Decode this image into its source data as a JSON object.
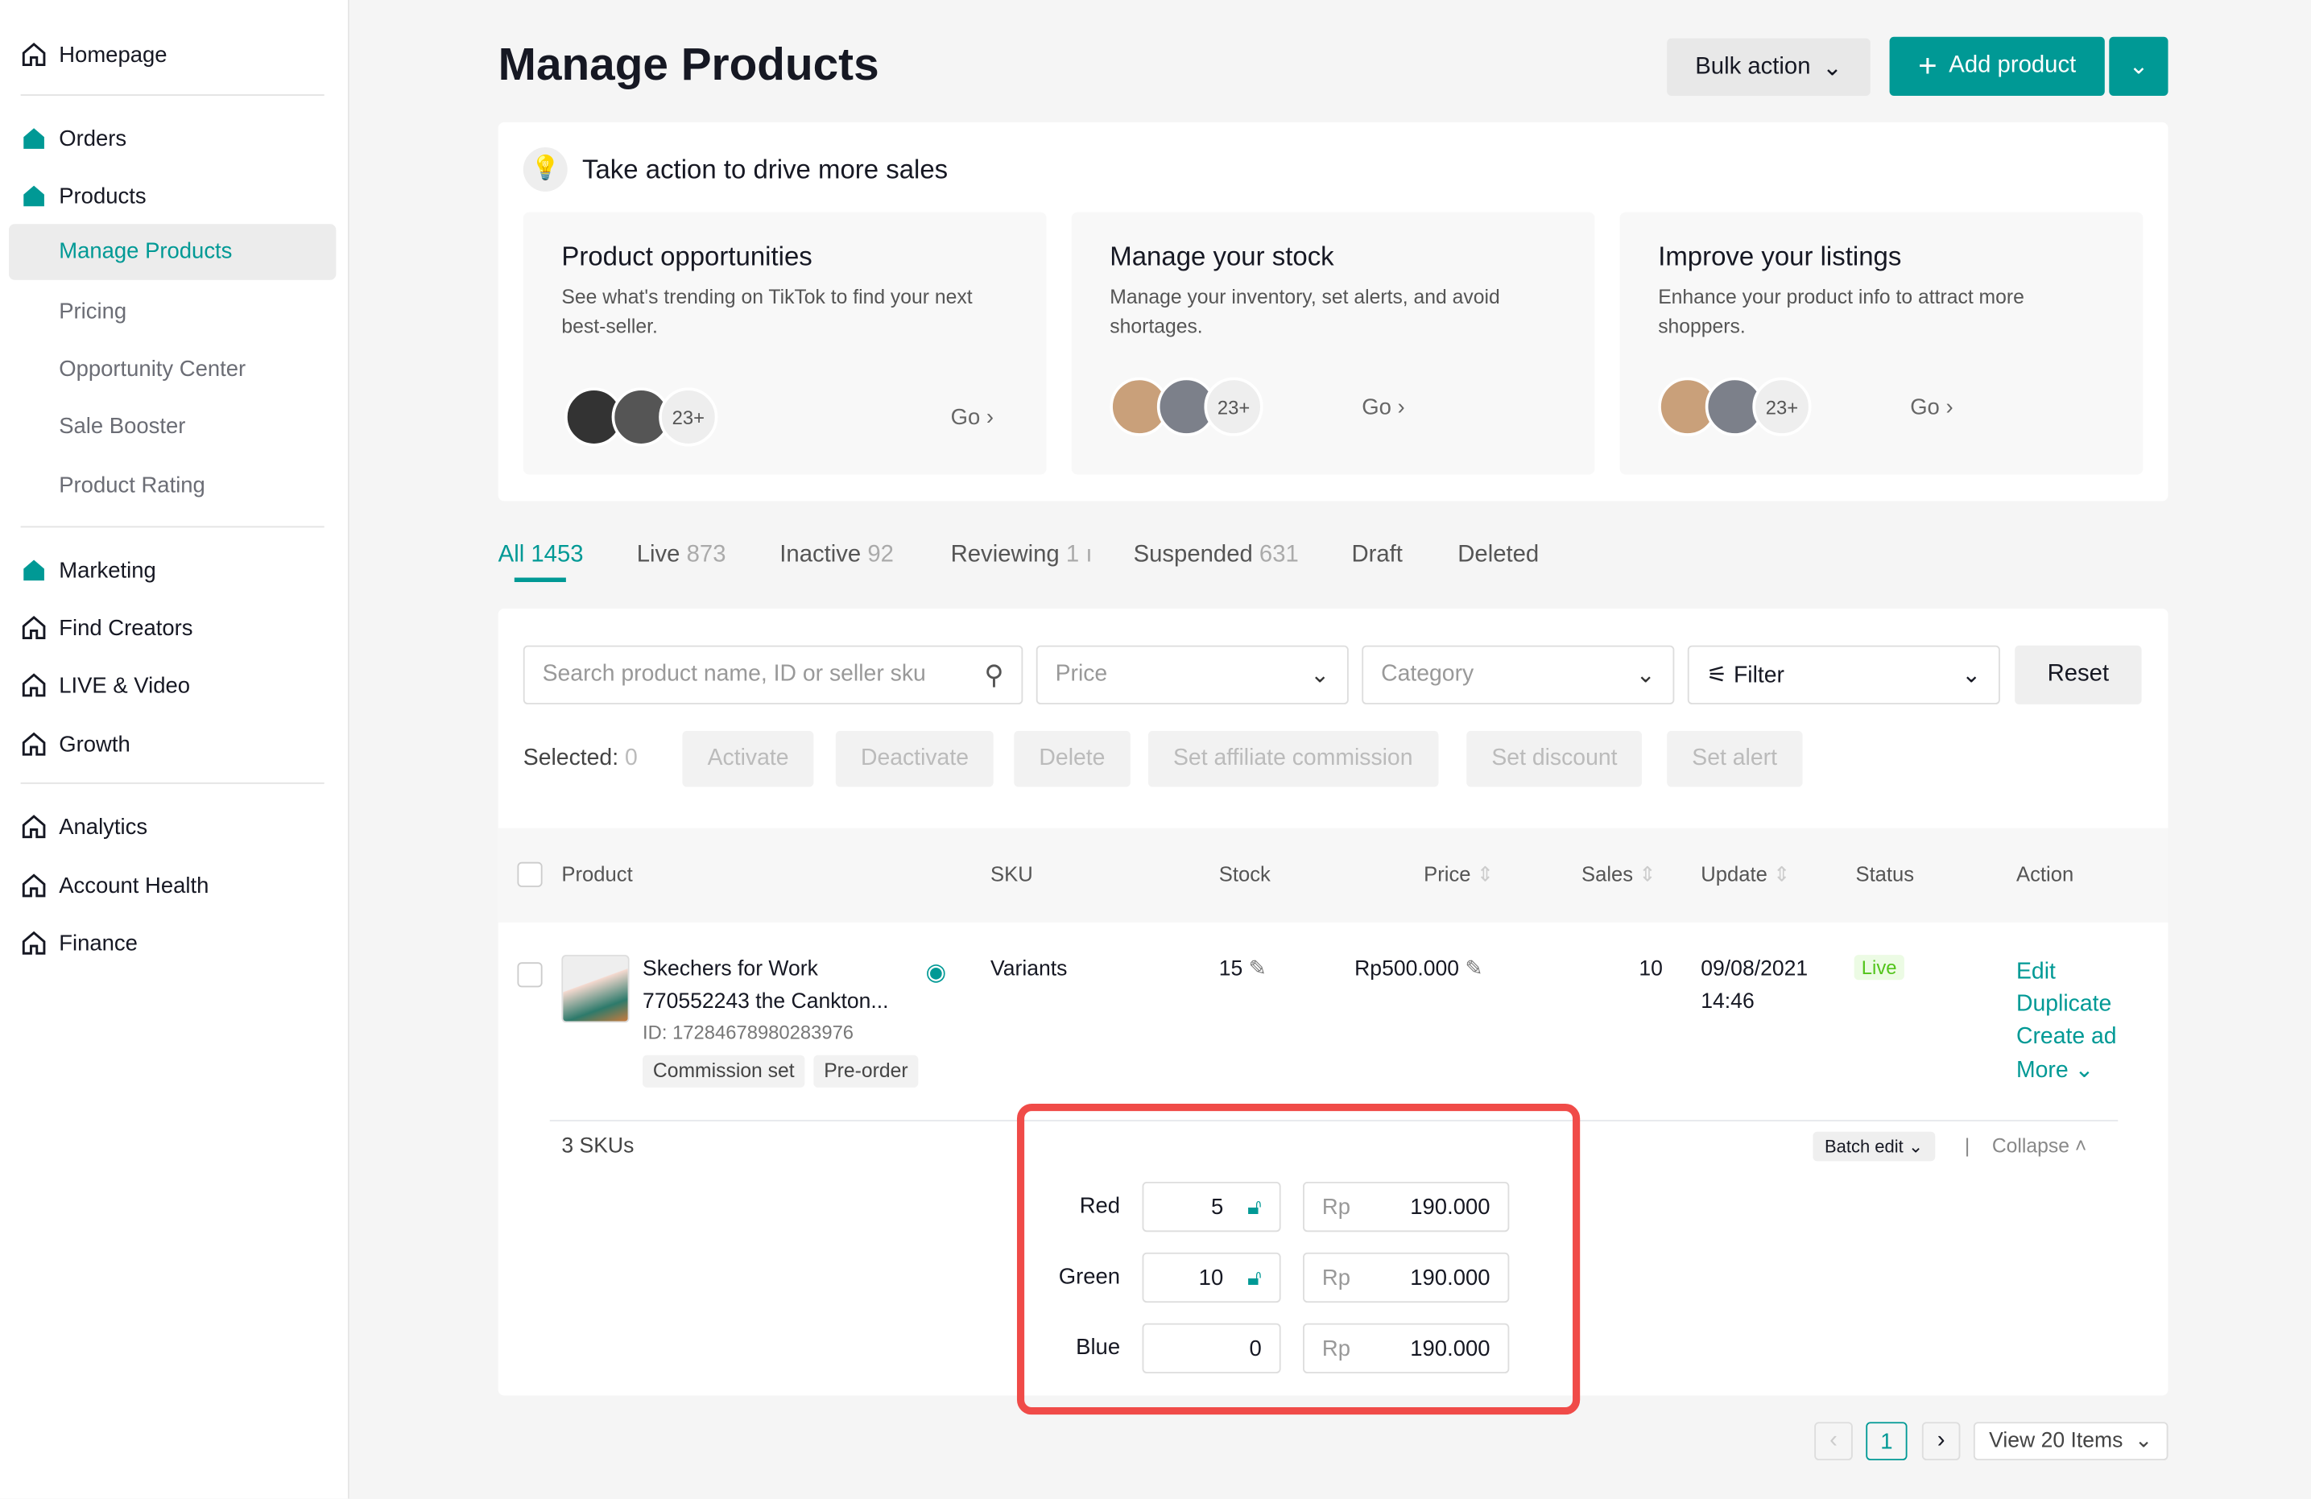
{
  "sidebar": {
    "homepage": "Homepage",
    "orders": "Orders",
    "products": "Products",
    "sub": [
      "Manage Products",
      "Pricing",
      "Opportunity Center",
      "Sale Booster",
      "Product Rating"
    ],
    "marketing": "Marketing",
    "find_creators": "Find Creators",
    "live_video": "LIVE & Video",
    "growth": "Growth",
    "analytics": "Analytics",
    "account_health": "Account Health",
    "finance": "Finance"
  },
  "header": {
    "title": "Manage Products",
    "bulk_action": "Bulk action",
    "add_product": "Add product"
  },
  "sales": {
    "title": "Take action to drive more sales",
    "cards": [
      {
        "title": "Product opportunities",
        "desc": "See what's trending on TikTok to find your next best-seller.",
        "count": "23+",
        "go": "Go"
      },
      {
        "title": "Manage your stock",
        "desc": "Manage your inventory, set alerts, and avoid shortages.",
        "count": "23+",
        "go": "Go"
      },
      {
        "title": "Improve your listings",
        "desc": "Enhance your product info to attract more shoppers.",
        "count": "23+",
        "go": "Go"
      }
    ]
  },
  "tabs": [
    {
      "label": "All",
      "count": "1453"
    },
    {
      "label": "Live",
      "count": "873"
    },
    {
      "label": "Inactive",
      "count": "92"
    },
    {
      "label": "Reviewing",
      "count": "1"
    },
    {
      "label": "Suspended",
      "count": "631"
    },
    {
      "label": "Draft",
      "count": ""
    },
    {
      "label": "Deleted",
      "count": ""
    }
  ],
  "filters": {
    "search_placeholder": "Search product name, ID or seller sku",
    "price": "Price",
    "category": "Category",
    "filter": "Filter",
    "reset": "Reset"
  },
  "selection": {
    "label": "Selected:",
    "count": "0",
    "actions": [
      "Activate",
      "Deactivate",
      "Delete",
      "Set affiliate commission",
      "Set discount",
      "Set alert"
    ]
  },
  "table": {
    "headers": [
      "Product",
      "SKU",
      "Stock",
      "Price",
      "Sales",
      "Update",
      "Status",
      "Action"
    ],
    "row": {
      "name1": "Skechers for Work",
      "name2": "770552243 the Cankton...",
      "id": "ID: 17284678980283976",
      "tags": [
        "Commission set",
        "Pre-order"
      ],
      "sku": "Variants",
      "stock": "15",
      "price": "Rp500.000",
      "sales": "10",
      "date": "09/08/2021",
      "time": "14:46",
      "status": "Live",
      "actions": [
        "Edit",
        "Duplicate",
        "Create ad",
        "More"
      ]
    },
    "skus": "3 SKUs",
    "batch_edit": "Batch edit",
    "collapse": "Collapse",
    "variants": [
      {
        "name": "Red",
        "stock": "5",
        "locked": true,
        "currency": "Rp",
        "price": "190.000"
      },
      {
        "name": "Green",
        "stock": "10",
        "locked": true,
        "currency": "Rp",
        "price": "190.000"
      },
      {
        "name": "Blue",
        "stock": "0",
        "locked": false,
        "currency": "Rp",
        "price": "190.000"
      }
    ]
  },
  "pagination": {
    "page": "1",
    "view": "View 20 Items"
  },
  "colors": {
    "accent": "#009995",
    "highlight": "#f04b48",
    "live": "#52c41a"
  }
}
